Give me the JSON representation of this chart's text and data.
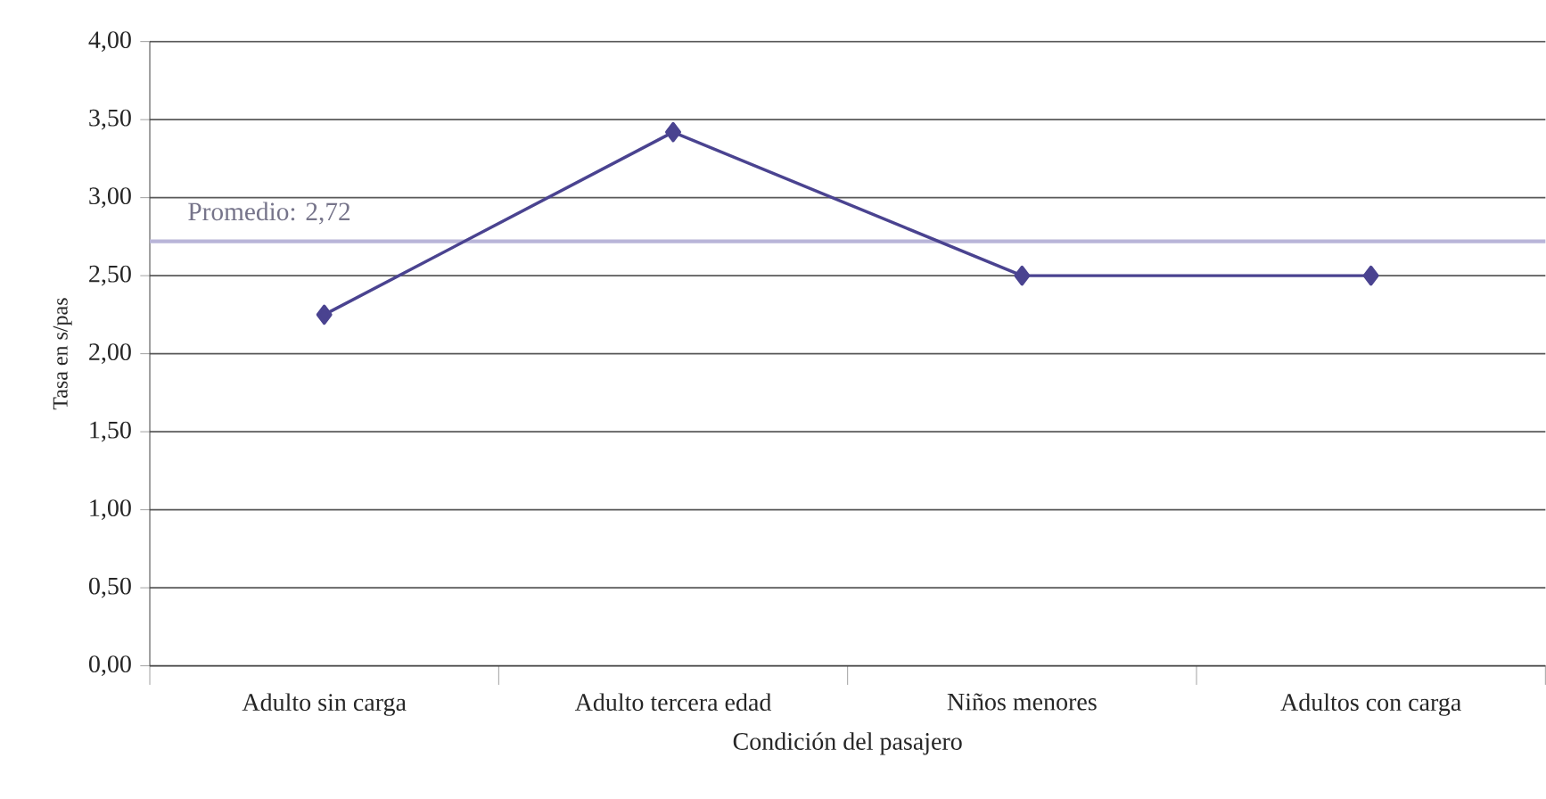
{
  "chart_data": {
    "type": "line",
    "categories": [
      "Adulto sin carga",
      "Adulto tercera edad",
      "Niños menores",
      "Adultos con carga"
    ],
    "series": [
      {
        "color": "#4a4390",
        "values": [
          2.25,
          3.42,
          2.5,
          2.5
        ]
      }
    ],
    "xlabel": "Condición del pasajero",
    "ylabel": "Tasa en s/pas",
    "ylim": [
      0,
      4
    ],
    "yticks": [
      {
        "value": 0,
        "label": "0,00"
      },
      {
        "value": 0.5,
        "label": "0,50"
      },
      {
        "value": 1,
        "label": "1,00"
      },
      {
        "value": 1.5,
        "label": "1,50"
      },
      {
        "value": 2,
        "label": "2,00"
      },
      {
        "value": 2.5,
        "label": "2,50"
      },
      {
        "value": 3,
        "label": "3,00"
      },
      {
        "value": 3.5,
        "label": "3,50"
      },
      {
        "value": 4,
        "label": "4,00"
      }
    ],
    "ref_lines": [
      {
        "axis": "y",
        "value": 2.72,
        "label": "Promedio: 2,72",
        "color": "#b9b5d8"
      }
    ],
    "grid": "y",
    "marker": "diamond",
    "line_style": "solid"
  }
}
